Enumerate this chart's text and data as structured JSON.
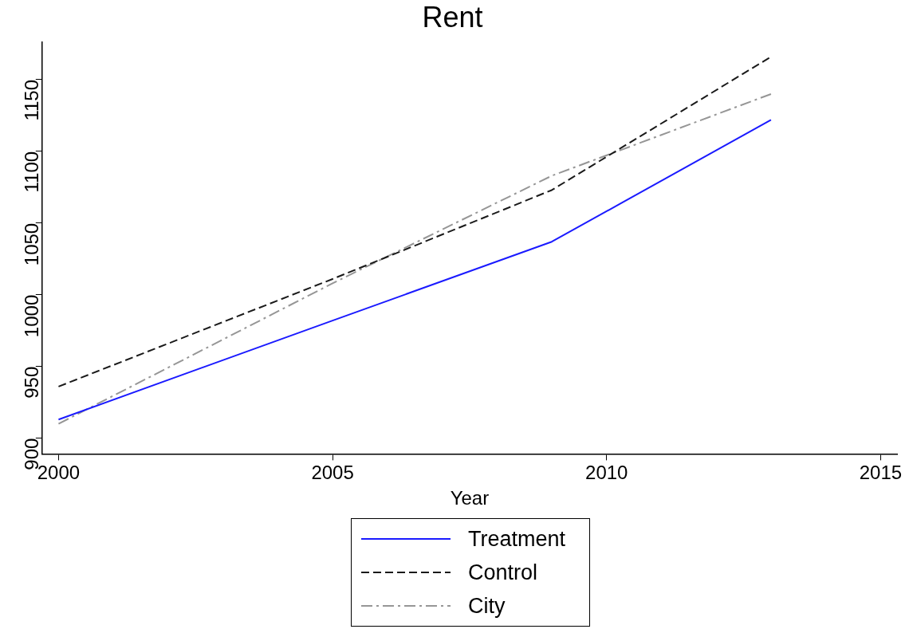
{
  "chart_data": {
    "type": "line",
    "title": "Rent",
    "xlabel": "Year",
    "x": [
      2000,
      2005,
      2009,
      2013
    ],
    "series": [
      {
        "name": "Treatment",
        "color": "#1a1aff",
        "line_style": "solid",
        "values": [
          913,
          982,
          1037,
          1122
        ]
      },
      {
        "name": "Control",
        "color": "#1a1a1a",
        "line_style": "dashed",
        "values": [
          936,
          1011,
          1073,
          1166
        ]
      },
      {
        "name": "City",
        "color": "#969696",
        "line_style": "dashdot",
        "values": [
          910,
          1008,
          1083,
          1140
        ]
      }
    ],
    "xlim": [
      1999.7,
      2015.3
    ],
    "xticks": [
      2000,
      2005,
      2010,
      2015
    ],
    "ylim": [
      889,
      1176
    ],
    "yticks": [
      900,
      950,
      1000,
      1050,
      1100,
      1150
    ],
    "grid": false,
    "legend": "bottom",
    "marker": "none"
  }
}
